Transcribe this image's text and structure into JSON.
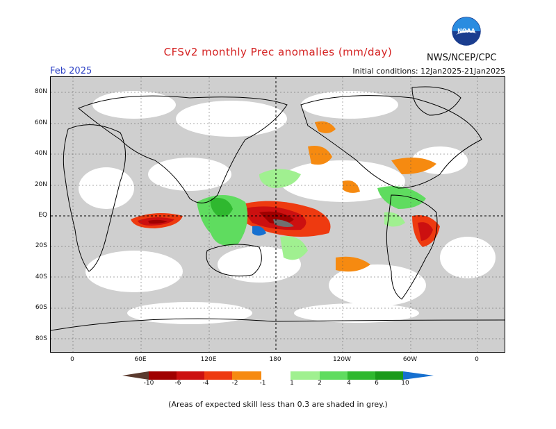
{
  "header": {
    "title": "CFSv2 monthly Prec anomalies (mm/day)",
    "agency": "NWS/NCEP/CPC",
    "logo_text": "NOAA",
    "month": "Feb 2025",
    "initial_conditions": "Initial conditions: 12Jan2025-21Jan2025"
  },
  "axes": {
    "lat_labels": [
      "80N",
      "60N",
      "40N",
      "20N",
      "EQ",
      "20S",
      "40S",
      "60S",
      "80S"
    ],
    "lon_labels": [
      "0",
      "60E",
      "120E",
      "180",
      "120W",
      "60W",
      "0"
    ]
  },
  "colorbar": {
    "labels": [
      "-10",
      "-6",
      "-4",
      "-2",
      "-1",
      "1",
      "2",
      "4",
      "6",
      "10"
    ],
    "colors": [
      "#5a3a2e",
      "#a00000",
      "#cc1010",
      "#ee3a10",
      "#f68a10",
      "#ffffff",
      "#a0f090",
      "#5fdc5f",
      "#2fb82f",
      "#1a9a1a",
      "#1670d0"
    ]
  },
  "map_colors": {
    "skill_grey": "#c8c8c8",
    "land_line": "#000000"
  },
  "footnote": "(Areas of expected skill less than 0.3 are shaded in grey.)"
}
